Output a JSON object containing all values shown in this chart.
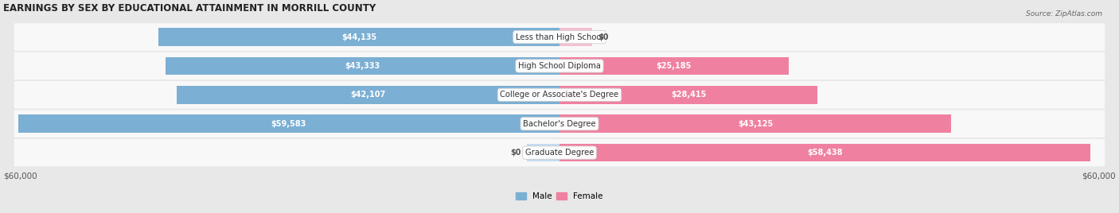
{
  "title": "EARNINGS BY SEX BY EDUCATIONAL ATTAINMENT IN MORRILL COUNTY",
  "source": "Source: ZipAtlas.com",
  "categories": [
    "Less than High School",
    "High School Diploma",
    "College or Associate's Degree",
    "Bachelor's Degree",
    "Graduate Degree"
  ],
  "male_values": [
    44135,
    43333,
    42107,
    59583,
    0
  ],
  "female_values": [
    0,
    25185,
    28415,
    43125,
    58438
  ],
  "male_labels": [
    "$44,135",
    "$43,333",
    "$42,107",
    "$59,583",
    "$0"
  ],
  "female_labels": [
    "$0",
    "$25,185",
    "$28,415",
    "$43,125",
    "$58,438"
  ],
  "male_color": "#7bafd4",
  "female_color": "#f080a0",
  "male_color_zero": "#c5daf0",
  "female_color_zero": "#f5c0d0",
  "max_value": 60000,
  "bg_color": "#e8e8e8",
  "row_bg": "#f8f8f8",
  "row_bg_alt": "#ebebeb",
  "axis_label_left": "$60,000",
  "axis_label_right": "$60,000",
  "legend_male": "Male",
  "legend_female": "Female"
}
